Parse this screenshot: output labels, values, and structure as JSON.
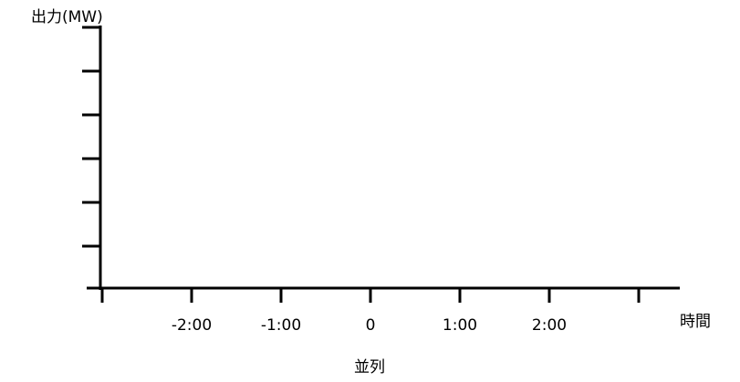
{
  "chart_data": {
    "type": "line",
    "title": "",
    "ylabel": "出力(MW)",
    "xlabel": "時間",
    "x_annotation": "並列",
    "x_ticks": [
      -3,
      -2,
      -1,
      0,
      1,
      2,
      3
    ],
    "x_tick_labels": [
      "",
      "-2:00",
      "-1:00",
      "0",
      "1:00",
      "2:00",
      ""
    ],
    "xlim": [
      -3,
      3
    ],
    "y_tick_count": 6,
    "series": [],
    "grid": false,
    "legend": "none"
  }
}
